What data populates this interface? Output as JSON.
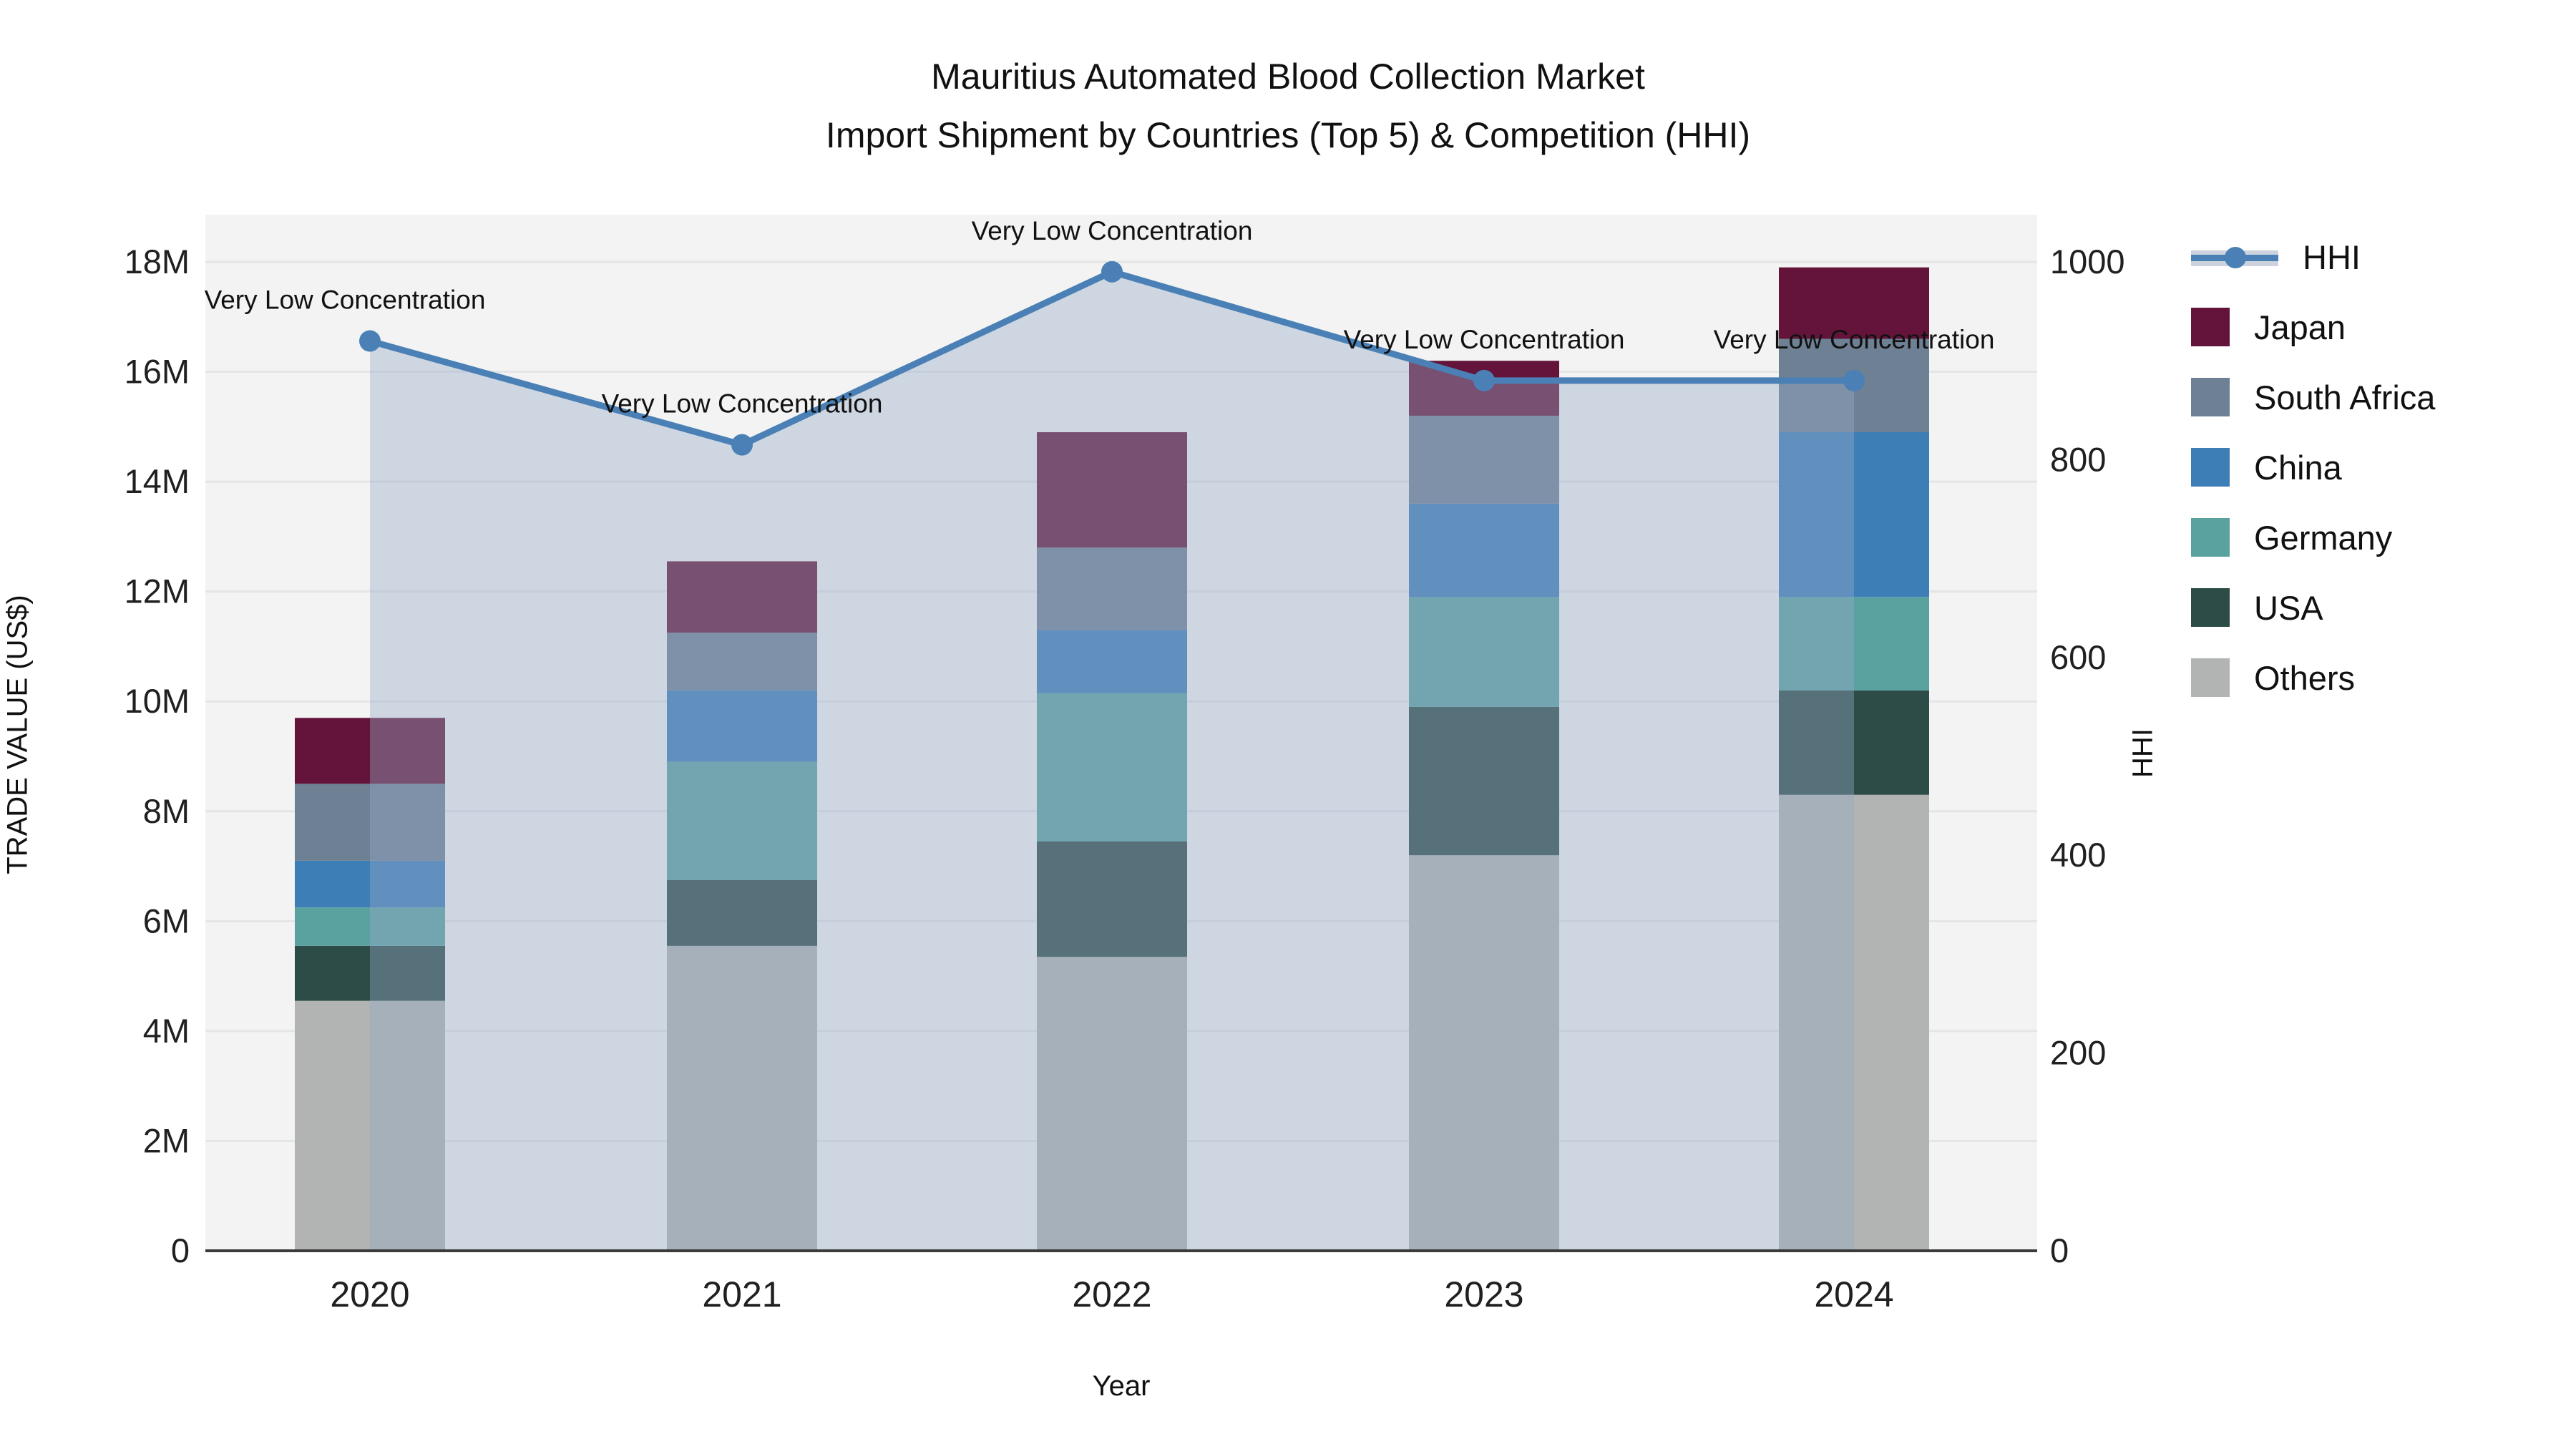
{
  "title": {
    "line1": "Mauritius Automated Blood Collection Market",
    "line2": "Import Shipment by Countries (Top 5) & Competition (HHI)"
  },
  "axes": {
    "x": {
      "title": "Year",
      "tick_labels": [
        "2020",
        "2021",
        "2022",
        "2023",
        "2024"
      ]
    },
    "y_left": {
      "title": "TRADE VALUE (US$)",
      "tick_labels": [
        "0",
        "2M",
        "4M",
        "6M",
        "8M",
        "10M",
        "12M",
        "14M",
        "16M",
        "18M"
      ],
      "range_millions": [
        0,
        18
      ]
    },
    "y_right": {
      "title": "HHI",
      "tick_labels": [
        "0",
        "200",
        "400",
        "600",
        "800",
        "1000"
      ],
      "range": [
        0,
        1000
      ]
    }
  },
  "chart_data": {
    "type": "bar+line",
    "categories": [
      "2020",
      "2021",
      "2022",
      "2023",
      "2024"
    ],
    "bar_unit": "millions USD",
    "series": [
      {
        "name": "Others",
        "color": "#b1b4b3",
        "values": [
          4.55,
          5.55,
          5.35,
          7.2,
          8.3
        ]
      },
      {
        "name": "USA",
        "color": "#2d4c47",
        "values": [
          1.0,
          1.2,
          2.1,
          2.7,
          1.9
        ]
      },
      {
        "name": "Germany",
        "color": "#5aa2a0",
        "values": [
          0.7,
          2.15,
          2.7,
          2.0,
          1.7
        ]
      },
      {
        "name": "China",
        "color": "#3e7eb7",
        "values": [
          0.85,
          1.3,
          1.15,
          1.7,
          3.0
        ]
      },
      {
        "name": "South Africa",
        "color": "#6e8093",
        "values": [
          1.4,
          1.05,
          1.5,
          1.6,
          1.7
        ]
      },
      {
        "name": "Japan",
        "color": "#64143a",
        "values": [
          1.2,
          1.3,
          2.1,
          1.0,
          1.3
        ]
      }
    ],
    "bar_totals_millions": [
      9.7,
      12.55,
      14.9,
      16.2,
      17.9
    ],
    "line": {
      "name": "HHI",
      "color": "#4a80b5",
      "area_fill": "rgba(150,170,200,0.40)",
      "values": [
        920,
        815,
        990,
        880,
        880
      ]
    },
    "annotations": [
      {
        "x": "2020",
        "text": "Very Low Concentration"
      },
      {
        "x": "2021",
        "text": "Very Low Concentration"
      },
      {
        "x": "2022",
        "text": "Very Low Concentration"
      },
      {
        "x": "2023",
        "text": "Very Low Concentration"
      },
      {
        "x": "2024",
        "text": "Very Low Concentration"
      }
    ],
    "grid": "horizontal, every 2M",
    "legend_position": "right"
  },
  "legend": {
    "items": [
      {
        "label": "HHI",
        "type": "line",
        "color": "#4a80b5",
        "band": "#ccd3de"
      },
      {
        "label": "Japan",
        "type": "box",
        "color": "#64143a"
      },
      {
        "label": "South Africa",
        "type": "box",
        "color": "#6e8093"
      },
      {
        "label": "China",
        "type": "box",
        "color": "#3e7eb7"
      },
      {
        "label": "Germany",
        "type": "box",
        "color": "#5aa2a0"
      },
      {
        "label": "USA",
        "type": "box",
        "color": "#2d4c47"
      },
      {
        "label": "Others",
        "type": "box",
        "color": "#b1b4b3"
      }
    ]
  },
  "style": {
    "plot_bg": "#f2f3f2",
    "grid_color": "#e4e5e7",
    "axis_line_color": "#3b3b3b",
    "text_color": "#202020"
  }
}
